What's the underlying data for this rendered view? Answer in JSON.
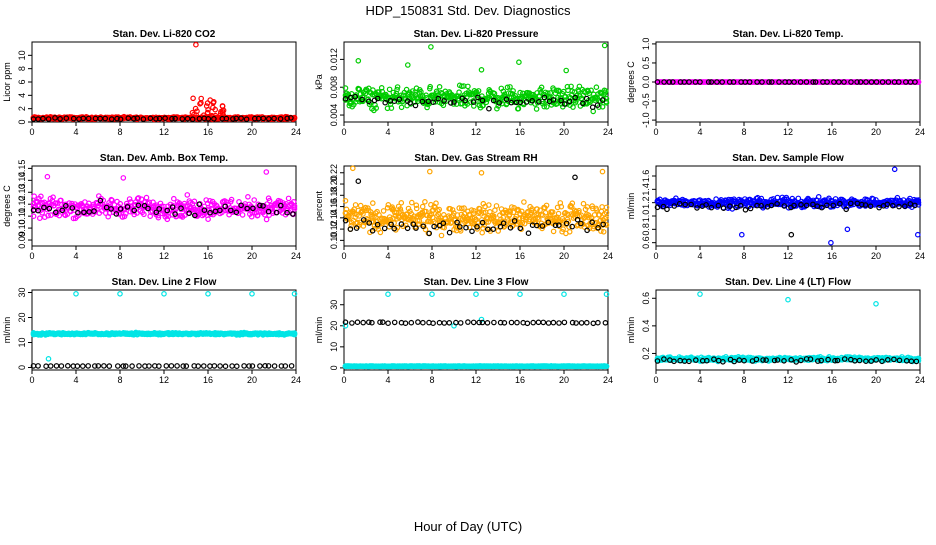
{
  "page": {
    "title": "HDP_150831  Std. Dev. Diagnostics",
    "xlabel": "Hour of Day (UTC)"
  },
  "chart_data": [
    {
      "type": "scatter",
      "title": "Stan. Dev. Li-820 CO2",
      "xlabel": "",
      "ylabel": "Licor ppm",
      "xlim": [
        0,
        24
      ],
      "ylim": [
        0,
        12
      ],
      "xticks": [
        "0",
        "4",
        "8",
        "12",
        "16",
        "20",
        "24"
      ],
      "yticks": [
        "0",
        "2",
        "4",
        "6",
        "8",
        "10"
      ],
      "ytick_values": [
        0,
        2,
        4,
        6,
        8,
        10
      ],
      "colors": {
        "primary": "#ff0000",
        "secondary": "#000000"
      },
      "series": [
        {
          "color": "#ff0000",
          "base": 0.6,
          "spread": 0.25,
          "bursts": [
            {
              "x0": 14.5,
              "x1": 17.5,
              "y0": 0.9,
              "y1": 3.6,
              "n": 30
            }
          ],
          "n": 420,
          "outliers": [
            [
              14.9,
              11.6
            ]
          ]
        },
        {
          "color": "#000000",
          "base": 0.5,
          "spread": 0.15,
          "n": 48,
          "outliers": []
        }
      ]
    },
    {
      "type": "scatter",
      "title": "Stan. Dev. Li-820 Pressure",
      "xlabel": "",
      "ylabel": "kPa",
      "xlim": [
        0,
        24
      ],
      "ylim": [
        0.003,
        0.0145
      ],
      "xticks": [
        "0",
        "4",
        "8",
        "12",
        "16",
        "20",
        "24"
      ],
      "yticks": [
        "0.004",
        "0.008",
        "0.012"
      ],
      "ytick_values": [
        0.004,
        0.008,
        0.012
      ],
      "colors": {
        "primary": "#00cc00",
        "secondary": "#000000"
      },
      "series": [
        {
          "color": "#00cc00",
          "base": 0.0065,
          "spread": 0.0022,
          "n": 420,
          "outliers": [
            [
              1.3,
              0.0118
            ],
            [
              5.8,
              0.0112
            ],
            [
              7.9,
              0.0138
            ],
            [
              15.9,
              0.0116
            ],
            [
              23.7,
              0.014
            ],
            [
              12.5,
              0.0105
            ],
            [
              20.2,
              0.0104
            ]
          ]
        },
        {
          "color": "#000000",
          "base": 0.006,
          "spread": 0.0014,
          "n": 48,
          "outliers": []
        }
      ]
    },
    {
      "type": "scatter",
      "title": "Stan. Dev. Li-820 Temp.",
      "xlabel": "",
      "ylabel": "degrees C",
      "xlim": [
        0,
        24
      ],
      "ylim": [
        -1.05,
        1.05
      ],
      "xticks": [
        "0",
        "4",
        "8",
        "12",
        "16",
        "20",
        "24"
      ],
      "yticks": [
        "-1.0",
        "-0.5",
        "0.0",
        "0.5",
        "1.0"
      ],
      "ytick_values": [
        -1,
        -0.5,
        0,
        0.5,
        1
      ],
      "colors": {
        "primary": "#ff00ff",
        "secondary": "#000000"
      },
      "series": [
        {
          "color": "#ff00ff",
          "base": 0.0,
          "spread": 0.0,
          "n": 420,
          "outliers": []
        },
        {
          "color": "#000000",
          "base": 0.0,
          "spread": 0.0,
          "n": 48,
          "outliers": []
        }
      ]
    },
    {
      "type": "scatter",
      "title": "Stan. Dev. Amb. Box Temp.",
      "xlabel": "",
      "ylabel": "degrees C",
      "xlim": [
        0,
        24
      ],
      "ylim": [
        0.085,
        0.152
      ],
      "xticks": [
        "0",
        "4",
        "8",
        "12",
        "16",
        "20",
        "24"
      ],
      "yticks": [
        "0.09",
        "0.10",
        "0.11",
        "0.12",
        "0.13",
        "0.14",
        "0.15"
      ],
      "ytick_values": [
        0.09,
        0.1,
        0.11,
        0.12,
        0.13,
        0.14,
        0.15
      ],
      "colors": {
        "primary": "#ff00ff",
        "secondary": "#000000"
      },
      "series": [
        {
          "color": "#ff00ff",
          "base": 0.117,
          "spread": 0.012,
          "n": 420,
          "outliers": [
            [
              21.3,
              0.147
            ],
            [
              1.4,
              0.143
            ],
            [
              8.3,
              0.142
            ]
          ]
        },
        {
          "color": "#000000",
          "base": 0.115,
          "spread": 0.009,
          "n": 48,
          "outliers": []
        }
      ]
    },
    {
      "type": "scatter",
      "title": "Stan. Dev. Gas Stream RH",
      "xlabel": "",
      "ylabel": "percent",
      "xlim": [
        0,
        24
      ],
      "ylim": [
        0.09,
        0.232
      ],
      "xticks": [
        "0",
        "4",
        "8",
        "12",
        "16",
        "20",
        "24"
      ],
      "yticks": [
        "0.10",
        "0.12",
        "0.14",
        "0.16",
        "0.18",
        "0.20",
        "0.22"
      ],
      "ytick_values": [
        0.1,
        0.12,
        0.14,
        0.16,
        0.18,
        0.2,
        0.22
      ],
      "colors": {
        "primary": "#ffa500",
        "secondary": "#000000"
      },
      "series": [
        {
          "color": "#ffa500",
          "base": 0.14,
          "spread": 0.035,
          "n": 480,
          "outliers": [
            [
              0.8,
              0.228
            ],
            [
              7.8,
              0.222
            ],
            [
              12.5,
              0.22
            ],
            [
              23.5,
              0.222
            ]
          ]
        },
        {
          "color": "#000000",
          "base": 0.125,
          "spread": 0.02,
          "n": 48,
          "outliers": [
            [
              1.3,
              0.205
            ],
            [
              21.0,
              0.212
            ]
          ]
        }
      ]
    },
    {
      "type": "scatter",
      "title": "Stan. Dev. Sample Flow",
      "xlabel": "",
      "ylabel": "ml/min",
      "xlim": [
        0,
        24
      ],
      "ylim": [
        0.55,
        1.75
      ],
      "xticks": [
        "0",
        "4",
        "8",
        "12",
        "16",
        "20",
        "24"
      ],
      "yticks": [
        "0.6",
        "0.8",
        "1.0",
        "1.2",
        "1.4",
        "1.6"
      ],
      "ytick_values": [
        0.6,
        0.8,
        1.0,
        1.2,
        1.4,
        1.6
      ],
      "colors": {
        "primary": "#0000ff",
        "secondary": "#000000"
      },
      "series": [
        {
          "color": "#0000ff",
          "base": 1.2,
          "spread": 0.1,
          "n": 440,
          "outliers": [
            [
              21.7,
              1.7
            ],
            [
              15.9,
              0.6
            ],
            [
              7.8,
              0.72
            ],
            [
              17.4,
              0.8
            ],
            [
              23.8,
              0.72
            ]
          ]
        },
        {
          "color": "#000000",
          "base": 1.15,
          "spread": 0.08,
          "n": 48,
          "outliers": [
            [
              12.3,
              0.72
            ]
          ]
        }
      ]
    },
    {
      "type": "scatter",
      "title": "Stan. Dev. Line 2 Flow",
      "xlabel": "",
      "ylabel": "ml/min",
      "xlim": [
        0,
        24
      ],
      "ylim": [
        -1,
        31
      ],
      "xticks": [
        "0",
        "4",
        "8",
        "12",
        "16",
        "20",
        "24"
      ],
      "yticks": [
        "0",
        "10",
        "20",
        "30"
      ],
      "ytick_values": [
        0,
        10,
        20,
        30
      ],
      "colors": {
        "primary": "#00e5e5",
        "secondary": "#000000"
      },
      "series": [
        {
          "color": "#00e5e5",
          "base": 13.5,
          "spread": 0.6,
          "n": 420,
          "outliers": [
            [
              4,
              29.5
            ],
            [
              8,
              29.5
            ],
            [
              12,
              29.5
            ],
            [
              16,
              29.5
            ],
            [
              20,
              29.5
            ],
            [
              24,
              29.5
            ],
            [
              1.5,
              3.5
            ]
          ]
        },
        {
          "color": "#000000",
          "base": 0.6,
          "spread": 0.1,
          "n": 48,
          "outliers": []
        }
      ]
    },
    {
      "type": "scatter",
      "title": "Stan. Dev. Line 3 Flow",
      "xlabel": "",
      "ylabel": "ml/min",
      "xlim": [
        0,
        24
      ],
      "ylim": [
        -1,
        37
      ],
      "xticks": [
        "0",
        "4",
        "8",
        "12",
        "16",
        "20",
        "24"
      ],
      "yticks": [
        "0",
        "10",
        "20",
        "30"
      ],
      "ytick_values": [
        0,
        10,
        20,
        30
      ],
      "colors": {
        "primary": "#00e5e5",
        "secondary": "#000000"
      },
      "series": [
        {
          "color": "#00e5e5",
          "base": 0.8,
          "spread": 0.2,
          "n": 420,
          "outliers": [
            [
              0,
              20
            ],
            [
              4,
              35
            ],
            [
              8,
              35
            ],
            [
              12,
              35
            ],
            [
              16,
              35
            ],
            [
              20,
              35
            ],
            [
              24,
              35
            ],
            [
              10,
              20
            ],
            [
              12.5,
              23
            ]
          ]
        },
        {
          "color": "#000000",
          "base": 21.5,
          "spread": 0.5,
          "n": 48,
          "outliers": []
        }
      ]
    },
    {
      "type": "scatter",
      "title": "Stan. Dev. Line 4 (LT) Flow",
      "xlabel": "",
      "ylabel": "ml/min",
      "xlim": [
        0,
        24
      ],
      "ylim": [
        0.08,
        0.66
      ],
      "xticks": [
        "0",
        "4",
        "8",
        "12",
        "16",
        "20",
        "24"
      ],
      "yticks": [
        "0.2",
        "0.4",
        "0.6"
      ],
      "ytick_values": [
        0.2,
        0.4,
        0.6
      ],
      "colors": {
        "primary": "#00e5e5",
        "secondary": "#000000"
      },
      "series": [
        {
          "color": "#00e5e5",
          "base": 0.16,
          "spread": 0.02,
          "n": 420,
          "outliers": [
            [
              4,
              0.63
            ],
            [
              12,
              0.59
            ],
            [
              20,
              0.56
            ]
          ]
        },
        {
          "color": "#000000",
          "base": 0.15,
          "spread": 0.015,
          "n": 48,
          "outliers": []
        }
      ]
    }
  ]
}
